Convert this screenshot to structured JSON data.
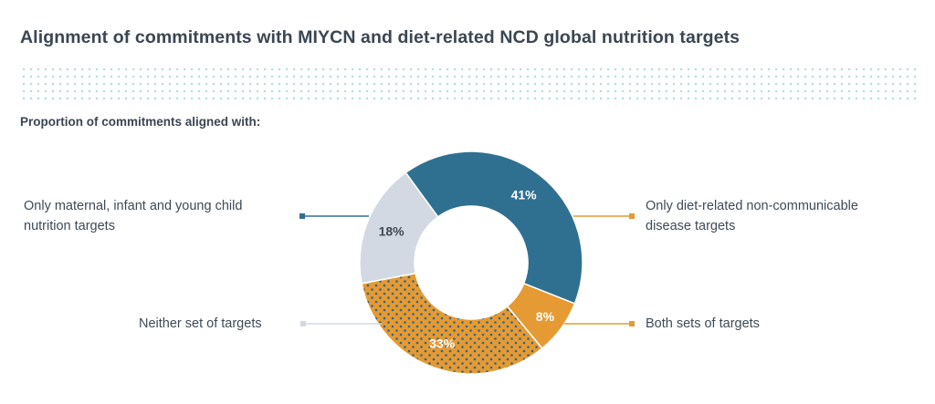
{
  "title": "Alignment of commitments with MIYCN and diet-related NCD global nutrition targets",
  "subtitle": "Proportion of commitments aligned with:",
  "chart_data": {
    "type": "pie",
    "style": "donut",
    "categories": [
      "Only maternal, infant and young child nutrition targets",
      "Only diet-related non-communicable disease targets",
      "Both sets of targets",
      "Neither set of targets"
    ],
    "values": [
      41,
      8,
      33,
      18
    ],
    "value_labels": [
      "41%",
      "8%",
      "33%",
      "18%"
    ],
    "colors": [
      "#2f7091",
      "#e59a33",
      "#e59a33",
      "#d2d9e2"
    ],
    "patterns": [
      "solid",
      "solid",
      "dotted",
      "solid"
    ],
    "label_colors": [
      "#ffffff",
      "#ffffff",
      "#ffffff",
      "#3e4a57"
    ],
    "legend": {
      "maternal_line1": "Only maternal, infant and young child",
      "maternal_line2": "nutrition targets",
      "ncd_line1": "Only diet-related non-communicable",
      "ncd_line2": "disease targets",
      "both": "Both sets of targets",
      "neither": "Neither set of targets"
    }
  }
}
